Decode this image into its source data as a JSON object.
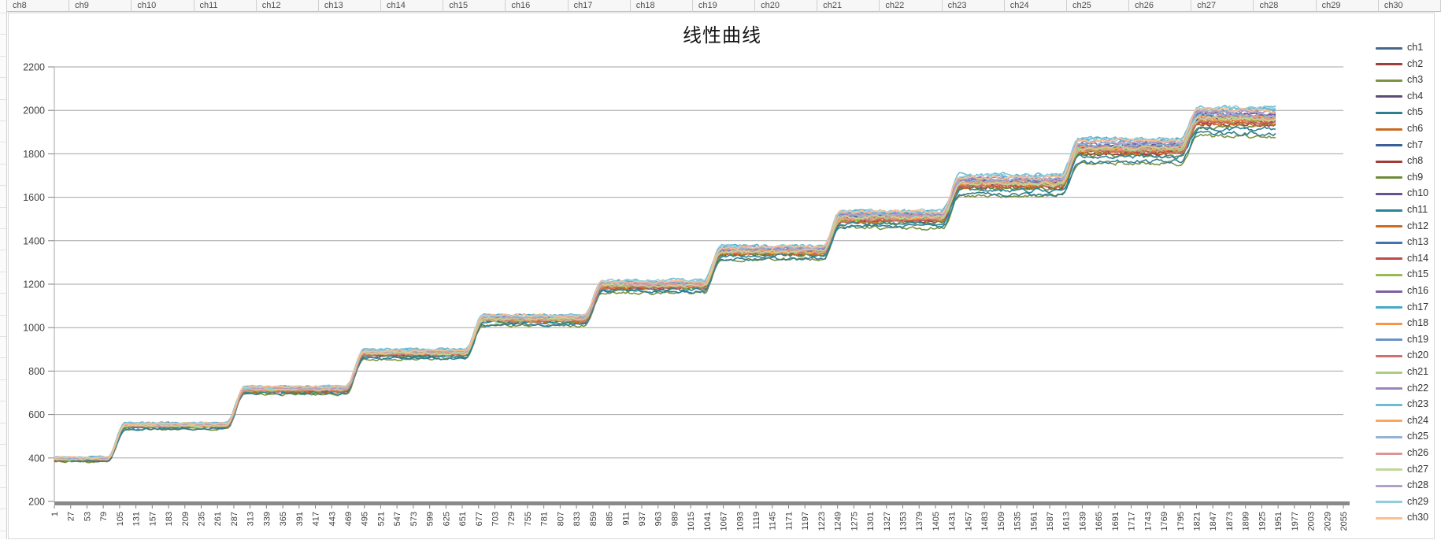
{
  "spreadsheet": {
    "visible_column_headers": [
      "ch8",
      "ch9",
      "ch10",
      "ch11",
      "ch12",
      "ch13",
      "ch14",
      "ch15",
      "ch16",
      "ch17",
      "ch18",
      "ch19",
      "ch20",
      "ch21",
      "ch22",
      "ch23",
      "ch24",
      "ch25",
      "ch26",
      "ch27",
      "ch28",
      "ch29",
      "ch30"
    ]
  },
  "colors": {
    "gridline": "#a6a6a6",
    "axis_line": "#8a8a8a",
    "tick": "#808080",
    "axis_text": "#3f3f3f",
    "title_text": "#141414",
    "chart_border": "#d9d9d9"
  },
  "chart_data": {
    "type": "line",
    "title": "线性曲线",
    "xlabel": "",
    "ylabel": "",
    "legend_position": "right",
    "gridlines": "horizontal",
    "ylim": [
      200,
      2200
    ],
    "y_tick_labels": [
      200,
      400,
      600,
      800,
      1000,
      1200,
      1400,
      1600,
      1800,
      2000,
      2200
    ],
    "x_tick_labels": [
      1,
      27,
      53,
      79,
      105,
      131,
      157,
      183,
      209,
      235,
      261,
      287,
      313,
      339,
      365,
      391,
      417,
      443,
      469,
      495,
      521,
      547,
      573,
      599,
      625,
      651,
      677,
      703,
      729,
      755,
      781,
      807,
      833,
      859,
      885,
      911,
      937,
      963,
      989,
      1015,
      1041,
      1067,
      1093,
      1119,
      1145,
      1171,
      1197,
      1223,
      1249,
      1275,
      1301,
      1327,
      1353,
      1379,
      1405,
      1431,
      1457,
      1483,
      1509,
      1535,
      1561,
      1587,
      1613,
      1639,
      1665,
      1691,
      1717,
      1743,
      1769,
      1795,
      1821,
      1847,
      1873,
      1899,
      1925,
      1951,
      1977,
      2003,
      2029,
      2055
    ],
    "x_axis_end": 2055,
    "data_x_start": 1,
    "data_x_end": 1950,
    "series_names": [
      "ch1",
      "ch2",
      "ch3",
      "ch4",
      "ch5",
      "ch6",
      "ch7",
      "ch8",
      "ch9",
      "ch10",
      "ch11",
      "ch12",
      "ch13",
      "ch14",
      "ch15",
      "ch16",
      "ch17",
      "ch18",
      "ch19",
      "ch20",
      "ch21",
      "ch22",
      "ch23",
      "ch24",
      "ch25",
      "ch26",
      "ch27",
      "ch28",
      "ch29",
      "ch30"
    ],
    "series_colors": [
      "#45698C",
      "#99403D",
      "#7A9342",
      "#5D4A76",
      "#2F7D91",
      "#C96A22",
      "#3A5F94",
      "#A03B37",
      "#6E8B39",
      "#66508F",
      "#2B8399",
      "#CC6B1E",
      "#4472B0",
      "#BE4B48",
      "#98B954",
      "#7D60A0",
      "#46AAC5",
      "#F79646",
      "#6C92C6",
      "#C97371",
      "#AECB84",
      "#9C85BB",
      "#6FBCD1",
      "#F9A65F",
      "#95B3D7",
      "#D99694",
      "#C2D69B",
      "#B2A1C7",
      "#92CDDC",
      "#FABF8F"
    ],
    "step_pattern": {
      "description": "All 30 channels trace the same noisy staircase: 11 plateaus rising from ~390 to ~2000 counts, with the channel-to-channel spread widening at higher plateaus; ch3 (green) and ch5 (dark teal) run lowest on the final plateaus (~1880/~1900) while the teal/pale channels top out near ~2015.",
      "rise_x_positions": [
        100,
        290,
        480,
        670,
        860,
        1050,
        1240,
        1430,
        1620,
        1810
      ],
      "plateau_bottom_levels": [
        383,
        532,
        692,
        855,
        1008,
        1160,
        1310,
        1455,
        1605,
        1750,
        1878
      ],
      "plateau_spreads": [
        22,
        30,
        38,
        45,
        52,
        58,
        68,
        85,
        100,
        125,
        140
      ],
      "rise_width_x": 28,
      "noise_amplitude": [
        4,
        8.5
      ]
    },
    "series_band_positions": [
      0.62,
      0.45,
      0.03,
      0.66,
      0.1,
      0.52,
      0.6,
      0.42,
      0.35,
      0.72,
      0.28,
      0.44,
      0.68,
      0.5,
      0.56,
      0.76,
      0.92,
      0.55,
      0.7,
      0.48,
      0.58,
      0.82,
      0.97,
      0.63,
      0.74,
      0.64,
      0.6,
      0.84,
      0.94,
      0.88
    ]
  }
}
